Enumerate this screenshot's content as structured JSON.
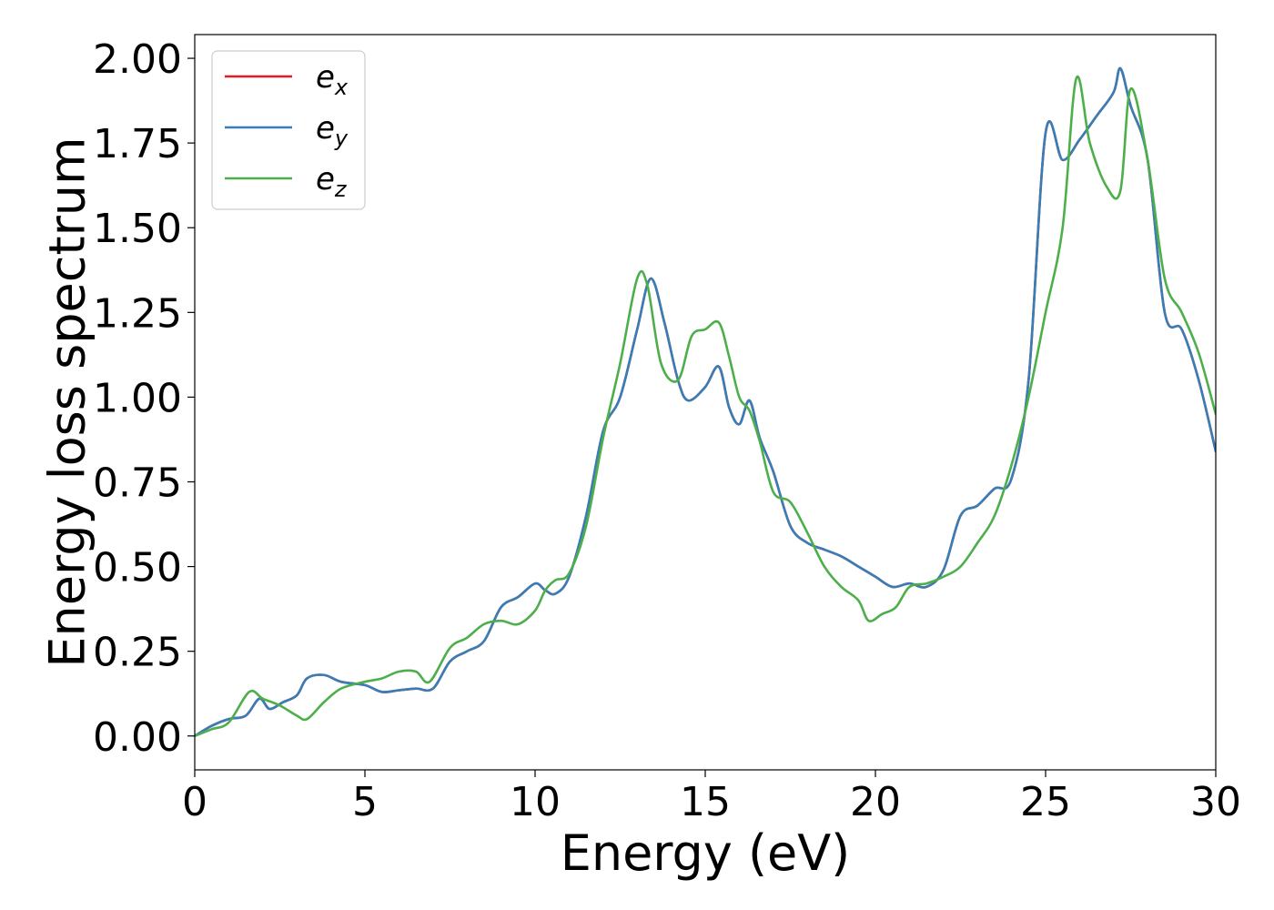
{
  "chart_data": {
    "type": "line",
    "title": "",
    "xlabel": "Energy (eV)",
    "ylabel": "Energy loss spectrum",
    "xlim": [
      0,
      30
    ],
    "ylim": [
      -0.1,
      2.07
    ],
    "xticks": [
      0,
      5,
      10,
      15,
      20,
      25,
      30
    ],
    "xtick_labels": [
      "0",
      "5",
      "10",
      "15",
      "20",
      "25",
      "30"
    ],
    "yticks": [
      0.0,
      0.25,
      0.5,
      0.75,
      1.0,
      1.25,
      1.5,
      1.75,
      2.0
    ],
    "ytick_labels": [
      "0.00",
      "0.25",
      "0.50",
      "0.75",
      "1.00",
      "1.25",
      "1.50",
      "1.75",
      "2.00"
    ],
    "grid": false,
    "legend_position": "top-left",
    "series": [
      {
        "name": "e",
        "subscript": "x",
        "color": "#e41a1c",
        "x": [
          0,
          0.5,
          1,
          1.5,
          1.9,
          2.2,
          2.6,
          3,
          3.3,
          3.8,
          4.3,
          5,
          5.5,
          6,
          6.5,
          7,
          7.5,
          8,
          8.5,
          9,
          9.5,
          10,
          10.3,
          10.6,
          11,
          11.5,
          12,
          12.5,
          13,
          13.4,
          13.8,
          14.2,
          14.5,
          15,
          15.4,
          15.7,
          16,
          16.3,
          16.6,
          17,
          17.5,
          18,
          18.5,
          19,
          19.5,
          20,
          20.5,
          21,
          21.5,
          22,
          22.5,
          23,
          23.5,
          24,
          24.5,
          25,
          25.5,
          26,
          26.5,
          27,
          27.2,
          27.5,
          28,
          28.5,
          29,
          29.5,
          30
        ],
        "y": [
          0,
          0.03,
          0.05,
          0.06,
          0.11,
          0.08,
          0.1,
          0.12,
          0.17,
          0.18,
          0.16,
          0.15,
          0.13,
          0.135,
          0.14,
          0.14,
          0.22,
          0.25,
          0.28,
          0.38,
          0.41,
          0.45,
          0.43,
          0.42,
          0.47,
          0.65,
          0.9,
          1.0,
          1.2,
          1.35,
          1.22,
          1.05,
          0.99,
          1.03,
          1.09,
          0.97,
          0.92,
          0.99,
          0.88,
          0.78,
          0.62,
          0.57,
          0.55,
          0.53,
          0.5,
          0.47,
          0.44,
          0.45,
          0.44,
          0.49,
          0.65,
          0.68,
          0.73,
          0.76,
          1.05,
          1.78,
          1.7,
          1.76,
          1.83,
          1.9,
          1.97,
          1.86,
          1.7,
          1.25,
          1.2,
          1.05,
          0.84
        ]
      },
      {
        "name": "e",
        "subscript": "y",
        "color": "#377eb8",
        "x": [
          0,
          0.5,
          1,
          1.5,
          1.9,
          2.2,
          2.6,
          3,
          3.3,
          3.8,
          4.3,
          5,
          5.5,
          6,
          6.5,
          7,
          7.5,
          8,
          8.5,
          9,
          9.5,
          10,
          10.3,
          10.6,
          11,
          11.5,
          12,
          12.5,
          13,
          13.4,
          13.8,
          14.2,
          14.5,
          15,
          15.4,
          15.7,
          16,
          16.3,
          16.6,
          17,
          17.5,
          18,
          18.5,
          19,
          19.5,
          20,
          20.5,
          21,
          21.5,
          22,
          22.5,
          23,
          23.5,
          24,
          24.5,
          25,
          25.5,
          26,
          26.5,
          27,
          27.2,
          27.5,
          28,
          28.5,
          29,
          29.5,
          30
        ],
        "y": [
          0,
          0.03,
          0.05,
          0.06,
          0.11,
          0.08,
          0.1,
          0.12,
          0.17,
          0.18,
          0.16,
          0.15,
          0.13,
          0.135,
          0.14,
          0.14,
          0.22,
          0.25,
          0.28,
          0.38,
          0.41,
          0.45,
          0.43,
          0.42,
          0.47,
          0.65,
          0.9,
          1.0,
          1.2,
          1.35,
          1.22,
          1.05,
          0.99,
          1.03,
          1.09,
          0.97,
          0.92,
          0.99,
          0.88,
          0.78,
          0.62,
          0.57,
          0.55,
          0.53,
          0.5,
          0.47,
          0.44,
          0.45,
          0.44,
          0.49,
          0.65,
          0.68,
          0.73,
          0.76,
          1.05,
          1.78,
          1.7,
          1.76,
          1.83,
          1.9,
          1.97,
          1.86,
          1.7,
          1.25,
          1.2,
          1.05,
          0.84
        ]
      },
      {
        "name": "e",
        "subscript": "z",
        "color": "#4daf4a",
        "x": [
          0,
          0.5,
          1,
          1.6,
          2,
          2.5,
          3,
          3.3,
          3.8,
          4.3,
          5,
          5.5,
          6,
          6.5,
          6.9,
          7.5,
          8,
          8.5,
          9,
          9.5,
          10,
          10.3,
          10.6,
          11,
          11.5,
          12,
          12.5,
          13,
          13.3,
          13.7,
          14.2,
          14.6,
          15,
          15.4,
          15.7,
          16,
          16.3,
          16.6,
          17,
          17.5,
          18,
          18.5,
          19,
          19.5,
          19.8,
          20.2,
          20.6,
          21,
          21.5,
          22,
          22.5,
          23,
          23.5,
          24,
          24.5,
          25,
          25.5,
          25.9,
          26.3,
          26.8,
          27.2,
          27.5,
          28,
          28.5,
          29,
          29.5,
          30
        ],
        "y": [
          0,
          0.02,
          0.04,
          0.13,
          0.11,
          0.09,
          0.06,
          0.05,
          0.1,
          0.14,
          0.16,
          0.17,
          0.19,
          0.19,
          0.16,
          0.26,
          0.29,
          0.33,
          0.34,
          0.33,
          0.37,
          0.43,
          0.46,
          0.48,
          0.62,
          0.88,
          1.1,
          1.35,
          1.33,
          1.1,
          1.05,
          1.18,
          1.2,
          1.22,
          1.12,
          1.0,
          0.96,
          0.87,
          0.72,
          0.69,
          0.6,
          0.5,
          0.44,
          0.4,
          0.34,
          0.36,
          0.38,
          0.44,
          0.45,
          0.47,
          0.5,
          0.57,
          0.65,
          0.8,
          1.0,
          1.25,
          1.5,
          1.94,
          1.75,
          1.62,
          1.61,
          1.91,
          1.7,
          1.35,
          1.25,
          1.13,
          0.95
        ]
      }
    ]
  }
}
